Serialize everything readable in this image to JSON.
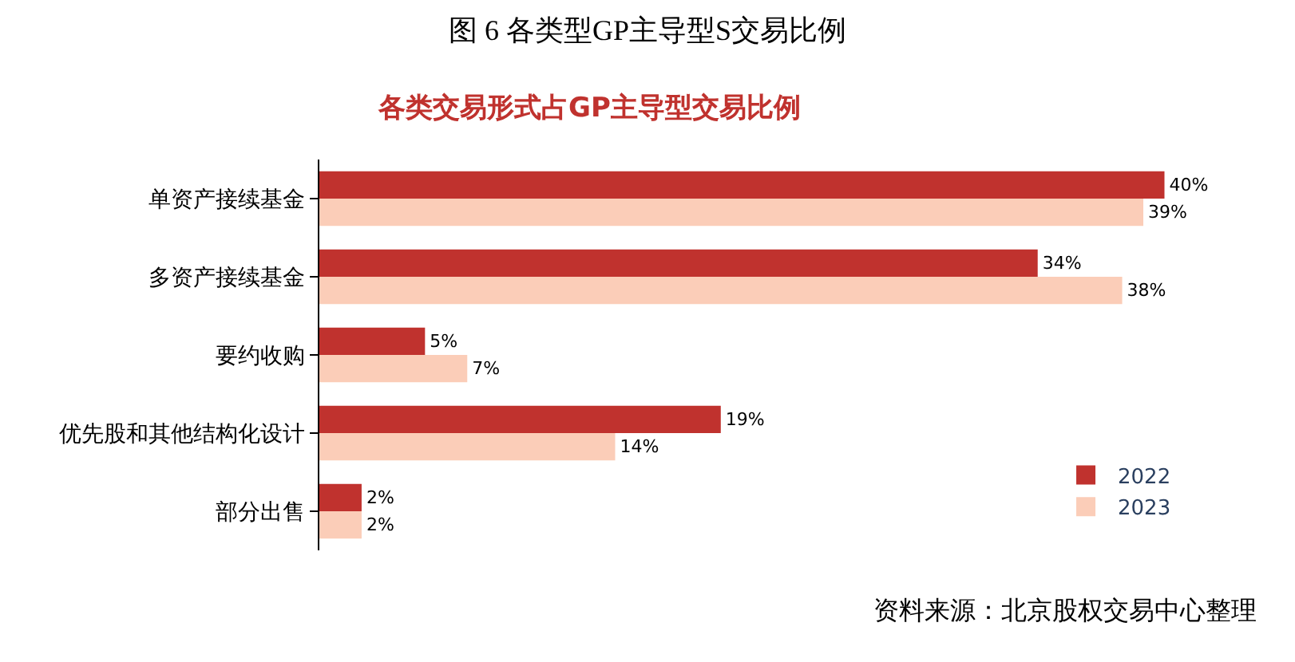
{
  "chart_data": {
    "type": "bar",
    "orientation": "horizontal",
    "title": "图 6 各类型GP主导型S交易比例",
    "subtitle": "各类交易形式占GP主导型交易比例",
    "categories": [
      "单资产接续基金",
      "多资产接续基金",
      "要约收购",
      "优先股和其他结构化设计",
      "部分出售"
    ],
    "series": [
      {
        "name": "2022",
        "color": "#c0322e",
        "values": [
          40,
          34,
          5,
          19,
          2
        ],
        "value_labels": [
          "40%",
          "34%",
          "5%",
          "19%",
          "2%"
        ]
      },
      {
        "name": "2023",
        "color": "#fbcdb8",
        "values": [
          39,
          38,
          7,
          14,
          2
        ],
        "value_labels": [
          "39%",
          "38%",
          "7%",
          "14%",
          "2%"
        ]
      }
    ],
    "annotations": [
      "资料来源：北京股权交易中心整理"
    ],
    "legend": "bottom right",
    "tick_labels": "y"
  }
}
